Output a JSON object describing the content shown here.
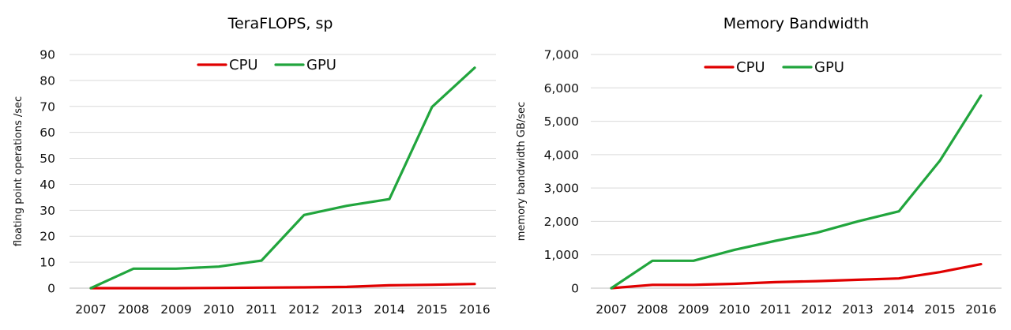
{
  "chart_data": [
    {
      "type": "line",
      "title": "TeraFLOPS,  sp",
      "xlabel": "",
      "ylabel": "floating point operations /sec",
      "categories": [
        "2007",
        "2008",
        "2009",
        "2010",
        "2011",
        "2012",
        "2013",
        "2014",
        "2015",
        "2016"
      ],
      "ylim": [
        0,
        90
      ],
      "yticks": [
        "0",
        "10",
        "20",
        "30",
        "40",
        "50",
        "60",
        "70",
        "80",
        "90"
      ],
      "grid": true,
      "legend_position": "top-center",
      "series": [
        {
          "name": "CPU",
          "color": "#e00000",
          "values": [
            0,
            0,
            0,
            0.1,
            0.2,
            0.3,
            0.5,
            1.1,
            1.3,
            1.6
          ]
        },
        {
          "name": "GPU",
          "color": "#21a53d",
          "values": [
            0,
            7.5,
            7.5,
            8.3,
            10.6,
            28.2,
            31.7,
            34.3,
            69.8,
            84.9
          ]
        }
      ]
    },
    {
      "type": "line",
      "title": "Memory Bandwidth",
      "xlabel": "",
      "ylabel": "memory bandwidth GB/sec",
      "categories": [
        "2007",
        "2008",
        "2009",
        "2010",
        "2011",
        "2012",
        "2013",
        "2014",
        "2015",
        "2016"
      ],
      "ylim": [
        0,
        7000
      ],
      "yticks": [
        "0",
        "1,000",
        "2,000",
        "3,000",
        "4,000",
        "5,000",
        "6,000",
        "7,000"
      ],
      "grid": true,
      "legend_position": "top-center",
      "series": [
        {
          "name": "CPU",
          "color": "#e00000",
          "values": [
            0,
            100,
            100,
            130,
            180,
            210,
            250,
            290,
            480,
            720
          ]
        },
        {
          "name": "GPU",
          "color": "#21a53d",
          "values": [
            0,
            820,
            820,
            1150,
            1420,
            1660,
            2000,
            2300,
            3820,
            5770
          ]
        }
      ]
    }
  ]
}
